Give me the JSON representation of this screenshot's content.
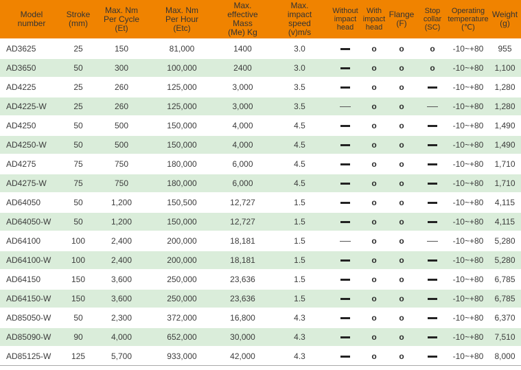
{
  "table": {
    "accent_color": "#F08300",
    "alt_row_color": "#DAEDDA",
    "header_text_color": "#333333",
    "body_text_color": "#3b3b3b",
    "symbols": {
      "circle": "o",
      "dash": "—",
      "dash_thin": "—"
    },
    "columns": [
      {
        "key": "model",
        "label": "Model\nnumber",
        "type": "text"
      },
      {
        "key": "stroke",
        "label": "Stroke\n(mm)",
        "type": "text"
      },
      {
        "key": "nm_per_cycle",
        "label": "Max. Nm\nPer Cycle\n(Et)",
        "type": "text"
      },
      {
        "key": "nm_per_hour",
        "label": "Max. Nm\nPer Hour\n(Etc)",
        "type": "text"
      },
      {
        "key": "effective_mass",
        "label": "Max.\neffective\nMass\n(Me) Kg",
        "type": "text"
      },
      {
        "key": "impact_speed",
        "label": "Max.\nimpact\nspeed\n(v)m/s",
        "type": "text"
      },
      {
        "key": "without_head",
        "label": "Without\nimpact\nhead",
        "type": "symbol"
      },
      {
        "key": "with_head",
        "label": "With\nimpact\nhead",
        "type": "symbol"
      },
      {
        "key": "flange",
        "label": "Flange\n(F)",
        "type": "symbol"
      },
      {
        "key": "stop_collar",
        "label": "Stop\ncollar\n(SC)",
        "type": "symbol"
      },
      {
        "key": "temperature",
        "label": "Operating\ntemperature\n(℃)",
        "type": "text"
      },
      {
        "key": "weight",
        "label": "Weight\n(g)",
        "type": "text"
      }
    ],
    "rows": [
      [
        "AD3625",
        "25",
        "150",
        "81,000",
        "1400",
        "3.0",
        "dash",
        "circle",
        "circle",
        "circle",
        "-10~+80",
        "955"
      ],
      [
        "AD3650",
        "50",
        "300",
        "100,000",
        "2400",
        "3.0",
        "dash",
        "circle",
        "circle",
        "circle",
        "-10~+80",
        "1,100"
      ],
      [
        "AD4225",
        "25",
        "260",
        "125,000",
        "3,000",
        "3.5",
        "dash",
        "circle",
        "circle",
        "dash",
        "-10~+80",
        "1,280"
      ],
      [
        "AD4225-W",
        "25",
        "260",
        "125,000",
        "3,000",
        "3.5",
        "dash-thin",
        "circle",
        "circle",
        "dash-thin",
        "-10~+80",
        "1,280"
      ],
      [
        "AD4250",
        "50",
        "500",
        "150,000",
        "4,000",
        "4.5",
        "dash",
        "circle",
        "circle",
        "dash",
        "-10~+80",
        "1,490"
      ],
      [
        "AD4250-W",
        "50",
        "500",
        "150,000",
        "4,000",
        "4.5",
        "dash",
        "circle",
        "circle",
        "dash",
        "-10~+80",
        "1,490"
      ],
      [
        "AD4275",
        "75",
        "750",
        "180,000",
        "6,000",
        "4.5",
        "dash",
        "circle",
        "circle",
        "dash",
        "-10~+80",
        "1,710"
      ],
      [
        "AD4275-W",
        "75",
        "750",
        "180,000",
        "6,000",
        "4.5",
        "dash",
        "circle",
        "circle",
        "dash",
        "-10~+80",
        "1,710"
      ],
      [
        "AD64050",
        "50",
        "1,200",
        "150,500",
        "12,727",
        "1.5",
        "dash",
        "circle",
        "circle",
        "dash",
        "-10~+80",
        "4,115"
      ],
      [
        "AD64050-W",
        "50",
        "1,200",
        "150,000",
        "12,727",
        "1.5",
        "dash",
        "circle",
        "circle",
        "dash",
        "-10~+80",
        "4,115"
      ],
      [
        "AD64100",
        "100",
        "2,400",
        "200,000",
        "18,181",
        "1.5",
        "dash-thin",
        "circle",
        "circle",
        "dash-thin",
        "-10~+80",
        "5,280"
      ],
      [
        "AD64100-W",
        "100",
        "2,400",
        "200,000",
        "18,181",
        "1.5",
        "dash",
        "circle",
        "circle",
        "dash",
        "-10~+80",
        "5,280"
      ],
      [
        "AD64150",
        "150",
        "3,600",
        "250,000",
        "23,636",
        "1.5",
        "dash",
        "circle",
        "circle",
        "dash",
        "-10~+80",
        "6,785"
      ],
      [
        "AD64150-W",
        "150",
        "3,600",
        "250,000",
        "23,636",
        "1.5",
        "dash",
        "circle",
        "circle",
        "dash",
        "-10~+80",
        "6,785"
      ],
      [
        "AD85050-W",
        "50",
        "2,300",
        "372,000",
        "16,800",
        "4.3",
        "dash",
        "circle",
        "circle",
        "dash",
        "-10~+80",
        "6,370"
      ],
      [
        "AD85090-W",
        "90",
        "4,000",
        "652,000",
        "30,000",
        "4.3",
        "dash",
        "circle",
        "circle",
        "dash",
        "-10~+80",
        "7,510"
      ],
      [
        "AD85125-W",
        "125",
        "5,700",
        "933,000",
        "42,000",
        "4.3",
        "dash",
        "circle",
        "circle",
        "dash",
        "-10~+80",
        "8,000"
      ]
    ]
  }
}
